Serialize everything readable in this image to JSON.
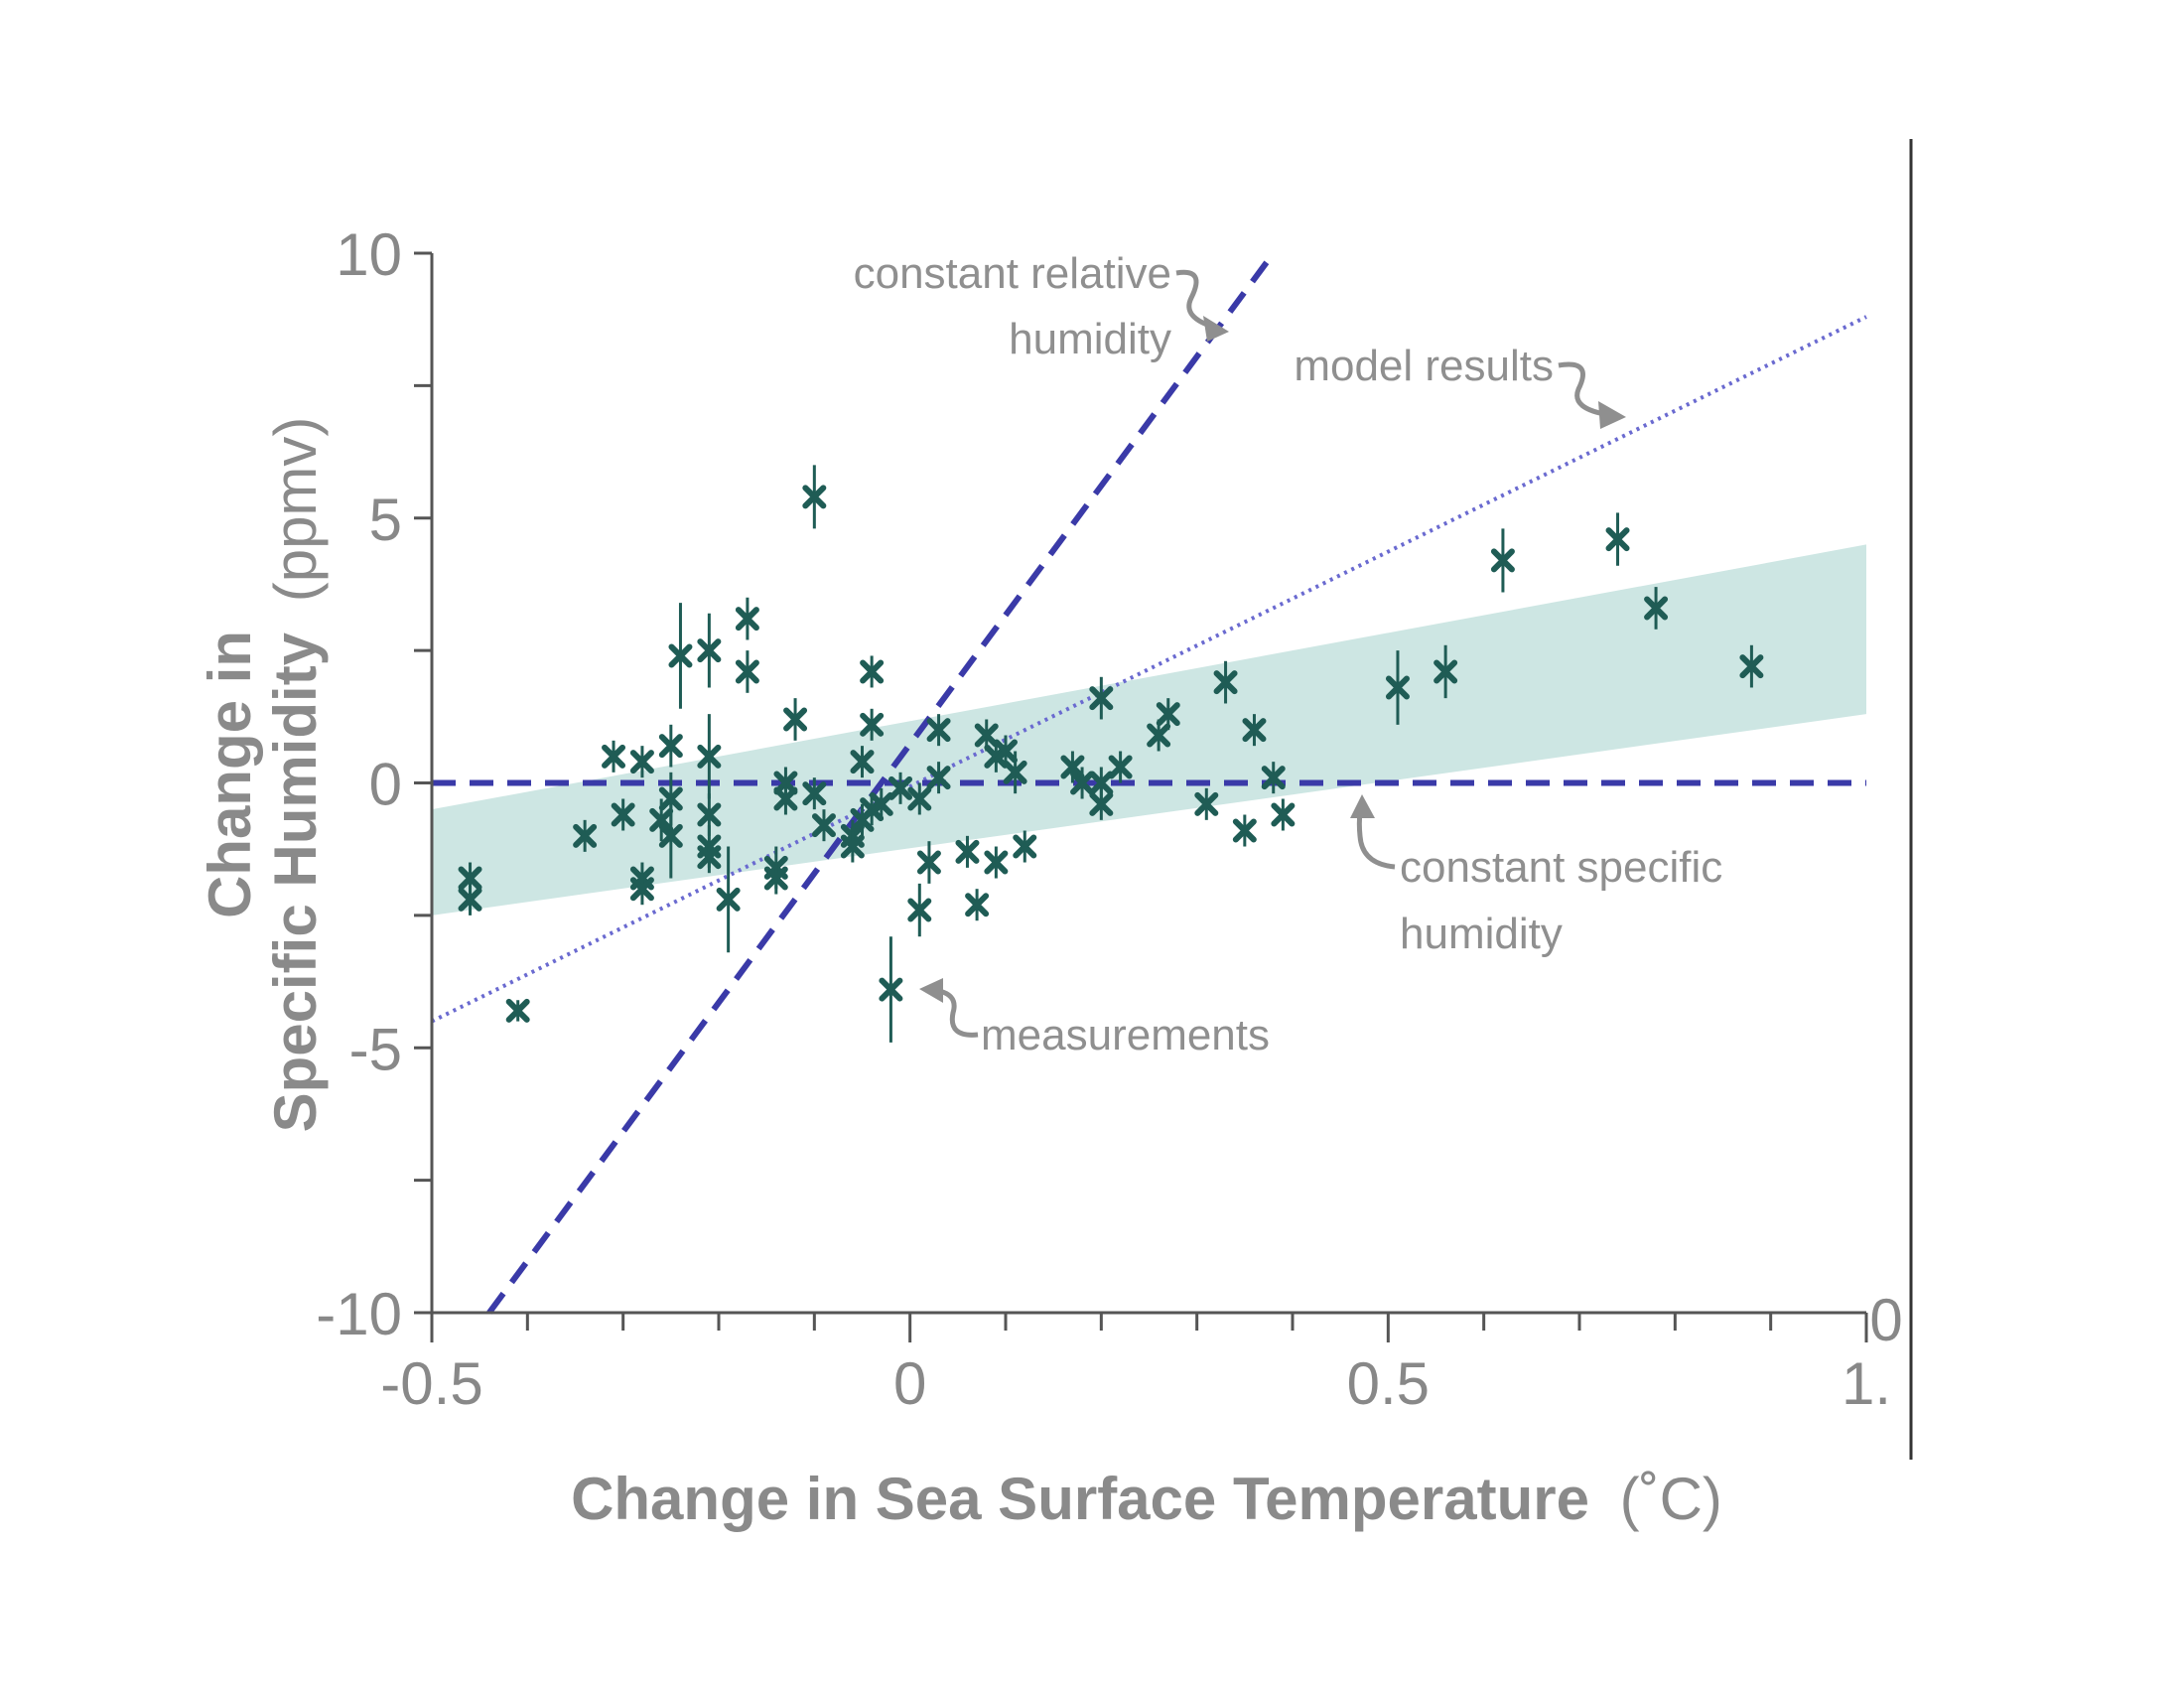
{
  "chart_data": {
    "type": "scatter",
    "title": "",
    "xlabel": "Change in Sea Surface Temperature",
    "xlabel_unit": "(˚C)",
    "ylabel_line1": "Change in",
    "ylabel_line2": "Specific Humidity",
    "ylabel_unit": "(ppmv)",
    "xlim": [
      -0.5,
      1.0
    ],
    "ylim": [
      -10,
      10
    ],
    "x_ticks": [
      -0.5,
      0,
      0.5,
      1.0
    ],
    "x_tick_labels": [
      "-0.5",
      "0",
      "0.5",
      "1."
    ],
    "y_ticks": [
      -10,
      -5,
      0,
      5,
      10
    ],
    "y_tick_labels": [
      "-10",
      "-5",
      "0",
      "5",
      "10"
    ],
    "right_axis_label": "0",
    "grid": false,
    "colors": {
      "measurement": "#1f5c55",
      "band": "#cde6e3",
      "reference_line": "#3a3aa8",
      "model_line": "#6a6ad0",
      "annotation": "#8f8f8f",
      "axis": "#555555"
    },
    "shaded_band": {
      "x": [
        -0.5,
        1.0
      ],
      "lower": [
        -2.5,
        1.3
      ],
      "upper": [
        -0.5,
        4.5
      ]
    },
    "lines": [
      {
        "name": "constant relative humidity",
        "style": "dashed",
        "x": [
          -0.44,
          0.38
        ],
        "y": [
          -10,
          10
        ]
      },
      {
        "name": "model results",
        "style": "dotted",
        "x": [
          -0.5,
          1.0
        ],
        "y": [
          -4.5,
          8.8
        ]
      },
      {
        "name": "constant specific humidity",
        "style": "dashed",
        "x": [
          -0.5,
          1.0
        ],
        "y": [
          0,
          0
        ]
      }
    ],
    "annotations": [
      {
        "text_lines": [
          "constant relative",
          "humidity"
        ],
        "target": [
          0.33,
          8.6
        ]
      },
      {
        "text_lines": [
          "model results"
        ],
        "target": [
          0.74,
          6.8
        ]
      },
      {
        "text_lines": [
          "constant specific",
          "humidity"
        ],
        "target": [
          0.46,
          -0.4
        ]
      },
      {
        "text_lines": [
          "measurements"
        ],
        "target": [
          0.005,
          -3.9
        ]
      }
    ],
    "series": [
      {
        "name": "measurements",
        "points": [
          {
            "x": -0.46,
            "y": -1.8,
            "e": 0.3
          },
          {
            "x": -0.46,
            "y": -2.2,
            "e": 0.3
          },
          {
            "x": -0.41,
            "y": -4.3,
            "e": 0.2
          },
          {
            "x": -0.34,
            "y": -1.0,
            "e": 0.3
          },
          {
            "x": -0.31,
            "y": 0.5,
            "e": 0.3
          },
          {
            "x": -0.3,
            "y": -0.6,
            "e": 0.3
          },
          {
            "x": -0.28,
            "y": 0.4,
            "e": 0.3
          },
          {
            "x": -0.28,
            "y": -1.8,
            "e": 0.3
          },
          {
            "x": -0.28,
            "y": -2.0,
            "e": 0.3
          },
          {
            "x": -0.26,
            "y": -0.7,
            "e": 0.4
          },
          {
            "x": -0.25,
            "y": 0.7,
            "e": 0.4
          },
          {
            "x": -0.25,
            "y": -1.0,
            "e": 0.8
          },
          {
            "x": -0.25,
            "y": -0.3,
            "e": 0.5
          },
          {
            "x": -0.24,
            "y": 2.4,
            "e": 1.0
          },
          {
            "x": -0.21,
            "y": 2.5,
            "e": 0.7
          },
          {
            "x": -0.21,
            "y": 0.5,
            "e": 0.8
          },
          {
            "x": -0.21,
            "y": -0.6,
            "e": 0.4
          },
          {
            "x": -0.21,
            "y": -1.2,
            "e": 0.4
          },
          {
            "x": -0.21,
            "y": -1.4,
            "e": 0.3
          },
          {
            "x": -0.19,
            "y": -2.2,
            "e": 1.0
          },
          {
            "x": -0.17,
            "y": 3.1,
            "e": 0.4
          },
          {
            "x": -0.17,
            "y": 2.1,
            "e": 0.4
          },
          {
            "x": -0.14,
            "y": -1.6,
            "e": 0.4
          },
          {
            "x": -0.14,
            "y": -1.8,
            "e": 0.3
          },
          {
            "x": -0.13,
            "y": 0.0,
            "e": 0.3
          },
          {
            "x": -0.13,
            "y": -0.3,
            "e": 0.3
          },
          {
            "x": -0.12,
            "y": 1.2,
            "e": 0.4
          },
          {
            "x": -0.1,
            "y": -0.2,
            "e": 0.3
          },
          {
            "x": -0.1,
            "y": 5.4,
            "e": 0.6
          },
          {
            "x": -0.09,
            "y": -0.8,
            "e": 0.3
          },
          {
            "x": -0.06,
            "y": -1.0,
            "e": 0.3
          },
          {
            "x": -0.06,
            "y": -1.2,
            "e": 0.3
          },
          {
            "x": -0.05,
            "y": 0.4,
            "e": 0.3
          },
          {
            "x": -0.05,
            "y": -0.7,
            "e": 0.3
          },
          {
            "x": -0.04,
            "y": 2.1,
            "e": 0.3
          },
          {
            "x": -0.04,
            "y": 1.1,
            "e": 0.3
          },
          {
            "x": -0.04,
            "y": -0.5,
            "e": 0.3
          },
          {
            "x": -0.03,
            "y": -0.4,
            "e": 0.3
          },
          {
            "x": -0.02,
            "y": -3.9,
            "e": 1.0
          },
          {
            "x": -0.01,
            "y": -0.1,
            "e": 0.3
          },
          {
            "x": 0.01,
            "y": -2.4,
            "e": 0.5
          },
          {
            "x": 0.01,
            "y": -0.3,
            "e": 0.3
          },
          {
            "x": 0.02,
            "y": -1.5,
            "e": 0.4
          },
          {
            "x": 0.03,
            "y": 1.0,
            "e": 0.3
          },
          {
            "x": 0.03,
            "y": 0.1,
            "e": 0.3
          },
          {
            "x": 0.06,
            "y": -1.3,
            "e": 0.3
          },
          {
            "x": 0.07,
            "y": -2.3,
            "e": 0.3
          },
          {
            "x": 0.08,
            "y": 0.9,
            "e": 0.3
          },
          {
            "x": 0.09,
            "y": 0.5,
            "e": 0.3
          },
          {
            "x": 0.09,
            "y": -1.5,
            "e": 0.3
          },
          {
            "x": 0.1,
            "y": 0.6,
            "e": 0.3
          },
          {
            "x": 0.11,
            "y": 0.2,
            "e": 0.4
          },
          {
            "x": 0.12,
            "y": -1.2,
            "e": 0.3
          },
          {
            "x": 0.17,
            "y": 0.3,
            "e": 0.3
          },
          {
            "x": 0.18,
            "y": 0.0,
            "e": 0.3
          },
          {
            "x": 0.2,
            "y": 1.6,
            "e": 0.4
          },
          {
            "x": 0.2,
            "y": 0.0,
            "e": 0.3
          },
          {
            "x": 0.2,
            "y": -0.4,
            "e": 0.3
          },
          {
            "x": 0.22,
            "y": 0.3,
            "e": 0.3
          },
          {
            "x": 0.26,
            "y": 0.9,
            "e": 0.3
          },
          {
            "x": 0.27,
            "y": 1.3,
            "e": 0.3
          },
          {
            "x": 0.31,
            "y": -0.4,
            "e": 0.3
          },
          {
            "x": 0.33,
            "y": 1.9,
            "e": 0.4
          },
          {
            "x": 0.35,
            "y": -0.9,
            "e": 0.3
          },
          {
            "x": 0.36,
            "y": 1.0,
            "e": 0.3
          },
          {
            "x": 0.38,
            "y": 0.1,
            "e": 0.3
          },
          {
            "x": 0.39,
            "y": -0.6,
            "e": 0.3
          },
          {
            "x": 0.51,
            "y": 1.8,
            "e": 0.7
          },
          {
            "x": 0.56,
            "y": 2.1,
            "e": 0.5
          },
          {
            "x": 0.62,
            "y": 4.2,
            "e": 0.6
          },
          {
            "x": 0.74,
            "y": 4.6,
            "e": 0.5
          },
          {
            "x": 0.78,
            "y": 3.3,
            "e": 0.4
          },
          {
            "x": 0.88,
            "y": 2.2,
            "e": 0.4
          }
        ]
      }
    ]
  }
}
